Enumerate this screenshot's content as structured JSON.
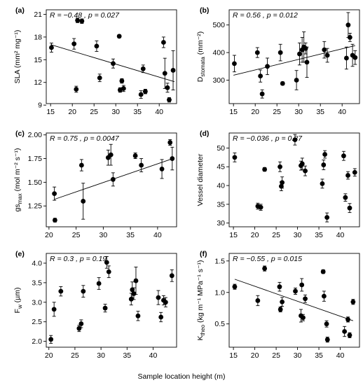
{
  "figure": {
    "xlabel": "Sample location height (m)"
  },
  "chart_data": [
    {
      "type": "scatter",
      "panel": "(a)",
      "ylabel": "SLA (mm² mg⁻¹)",
      "stat": "R = −0.48 , p = 0.027",
      "xlim": [
        14,
        44
      ],
      "ylim": [
        9.2,
        21.6
      ],
      "xticks": [
        15,
        20,
        25,
        30,
        35,
        40
      ],
      "yticks": [
        9,
        12,
        15,
        18,
        21
      ],
      "x": [
        15.2,
        20.4,
        20.9,
        21.2,
        22.2,
        25.6,
        26.3,
        29.4,
        30.8,
        31.0,
        31.4,
        31.8,
        35.8,
        36.3,
        36.8,
        41.0,
        41.3,
        41.9,
        42.3,
        43.2
      ],
      "y": [
        16.6,
        17.1,
        11.1,
        20.2,
        20.1,
        16.8,
        12.6,
        14.5,
        18.1,
        11.0,
        12.2,
        11.2,
        10.4,
        13.8,
        10.8,
        17.3,
        13.2,
        11.3,
        9.7,
        13.6
      ],
      "err": [
        0.6,
        0.7,
        0.4,
        0.3,
        0.3,
        0.7,
        0.5,
        0.6,
        0.2,
        0.3,
        0.3,
        0.4,
        0.5,
        0.5,
        0.3,
        0.7,
        2.0,
        0.6,
        0.3,
        2.6
      ],
      "fit": [
        [
          15,
          17.0
        ],
        [
          43.5,
          12.1
        ]
      ]
    },
    {
      "type": "scatter",
      "panel": "(b)",
      "ylabel": "D_stomata (mm⁻²)",
      "stat": "R = 0.56 , p = 0.012",
      "xlim": [
        14,
        44
      ],
      "ylim": [
        215,
        555
      ],
      "xticks": [
        15,
        20,
        25,
        30,
        35,
        40
      ],
      "yticks": [
        300,
        400,
        500
      ],
      "x": [
        15.2,
        20.5,
        21.2,
        21.6,
        22.8,
        25.8,
        26.3,
        29.5,
        30.2,
        30.8,
        31.2,
        31.6,
        31.9,
        35.9,
        36.6,
        41.0,
        41.4,
        41.8,
        42.4,
        43.0
      ],
      "y": [
        360,
        400,
        315,
        250,
        350,
        400,
        288,
        300,
        395,
        410,
        420,
        415,
        365,
        410,
        390,
        380,
        500,
        455,
        390,
        382
      ],
      "err": [
        30,
        18,
        22,
        15,
        30,
        30,
        6,
        35,
        40,
        45,
        55,
        20,
        55,
        30,
        25,
        40,
        45,
        15,
        40,
        25
      ],
      "fit": [
        [
          15,
          318
        ],
        [
          43,
          425
        ]
      ]
    },
    {
      "type": "scatter",
      "panel": "(c)",
      "ylabel": "gs_max (mol m⁻² s⁻¹)",
      "stat": "R = 0.75 , p = 0.0047",
      "xlim": [
        19.5,
        43.5
      ],
      "ylim": [
        1.03,
        2.02
      ],
      "xticks": [
        20,
        25,
        30,
        35,
        40
      ],
      "yticks": [
        1.25,
        1.5,
        1.75,
        2.0
      ],
      "x": [
        21.0,
        21.1,
        26.0,
        26.3,
        30.9,
        31.4,
        31.8,
        35.9,
        37.0,
        40.8,
        42.3,
        42.7
      ],
      "y": [
        1.38,
        1.1,
        1.68,
        1.3,
        1.76,
        1.79,
        1.53,
        1.78,
        1.68,
        1.64,
        1.92,
        1.75
      ],
      "err": [
        0.07,
        0.02,
        0.06,
        0.19,
        0.08,
        0.11,
        0.07,
        0.03,
        0.07,
        0.1,
        0.03,
        0.12
      ],
      "fit": [
        [
          21,
          1.32
        ],
        [
          42.8,
          1.75
        ]
      ]
    },
    {
      "type": "scatter",
      "panel": "(d)",
      "ylabel": "Vessel diameter",
      "stat": "R = −0.036 , p = 0.87",
      "xlim": [
        14,
        44.5
      ],
      "ylim": [
        29,
        54
      ],
      "xticks": [
        15,
        20,
        25,
        30,
        35,
        40
      ],
      "yticks": [
        30,
        35,
        40,
        45,
        50
      ],
      "x": [
        15.3,
        20.7,
        21.4,
        22.3,
        25.9,
        26.2,
        26.4,
        29.4,
        30.8,
        31.1,
        31.8,
        35.8,
        36.1,
        36.4,
        36.9,
        40.8,
        41.2,
        41.8,
        42.2,
        43.4
      ],
      "y": [
        47.5,
        34.5,
        34.2,
        44.3,
        45.0,
        39.8,
        40.8,
        52.2,
        45.3,
        45.8,
        43.9,
        40.5,
        45.5,
        48.3,
        31.5,
        47.9,
        36.8,
        42.7,
        34.0,
        43.5
      ],
      "err": [
        1.2,
        0.8,
        0.8,
        0.5,
        1.3,
        1.2,
        1.5,
        1.4,
        1.2,
        1.5,
        1.3,
        1.2,
        1.3,
        1.0,
        1.2,
        1.2,
        1.0,
        1.0,
        1.2,
        1.0
      ]
    },
    {
      "type": "scatter",
      "panel": "(e)",
      "ylabel": "F_w (µm)",
      "stat": "R = 0.3 , p = 0.19",
      "xlim": [
        19.5,
        44.5
      ],
      "ylim": [
        1.85,
        4.25
      ],
      "xticks": [
        20,
        25,
        30,
        35,
        40
      ],
      "yticks": [
        2.0,
        2.5,
        3.0,
        3.5,
        4.0
      ],
      "x": [
        20.4,
        21.0,
        22.3,
        25.8,
        26.2,
        26.6,
        29.6,
        30.8,
        31.1,
        31.5,
        35.8,
        36.0,
        36.3,
        36.7,
        37.1,
        41.0,
        41.5,
        42.0,
        42.4,
        43.6
      ],
      "y": [
        2.05,
        2.82,
        3.28,
        2.33,
        2.45,
        3.28,
        3.48,
        2.85,
        4.02,
        3.78,
        3.08,
        3.32,
        3.22,
        3.55,
        2.65,
        3.12,
        2.62,
        3.05,
        3.0,
        3.68
      ],
      "err": [
        0.1,
        0.18,
        0.12,
        0.08,
        0.1,
        0.15,
        0.15,
        0.1,
        0.15,
        0.15,
        0.15,
        0.2,
        0.15,
        0.35,
        0.12,
        0.18,
        0.12,
        0.12,
        0.12,
        0.15
      ]
    },
    {
      "type": "scatter",
      "panel": "(f)",
      "ylabel": "K_theo (kg m⁻¹ MPa⁻¹ s⁻¹)",
      "stat": "R = −0.55 , p = 0.015",
      "xlim": [
        14,
        44.5
      ],
      "ylim": [
        0.13,
        1.62
      ],
      "xticks": [
        15,
        20,
        25,
        30,
        35,
        40
      ],
      "yticks": [
        0.5,
        1.0,
        1.5
      ],
      "x": [
        15.3,
        20.7,
        22.3,
        25.8,
        26.0,
        26.4,
        29.5,
        30.8,
        31.0,
        31.3,
        31.8,
        36.0,
        36.2,
        36.8,
        37.0,
        41.0,
        41.8,
        42.2,
        43.0
      ],
      "y": [
        1.09,
        0.87,
        1.38,
        1.09,
        0.73,
        0.85,
        1.02,
        0.63,
        1.12,
        0.6,
        0.9,
        1.33,
        0.94,
        0.5,
        0.25,
        0.38,
        0.57,
        0.32,
        0.85
      ],
      "err": [
        0.04,
        0.08,
        0.04,
        0.07,
        0.04,
        0.07,
        0.05,
        0.1,
        0.1,
        0.05,
        0.06,
        0.03,
        0.08,
        0.05,
        0.04,
        0.08,
        0.04,
        0.04,
        0.04
      ],
      "fit": [
        [
          15.3,
          1.21
        ],
        [
          43,
          0.55
        ]
      ]
    }
  ]
}
